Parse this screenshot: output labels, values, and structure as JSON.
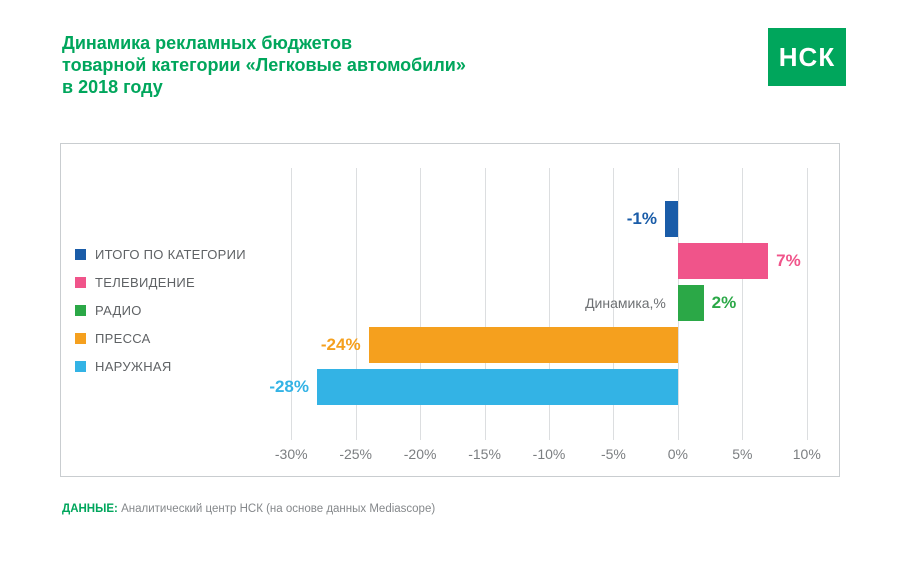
{
  "page": {
    "title_lines": [
      "Динамика рекламных бюджетов",
      "товарной категории «Легковые автомобили»",
      "в 2018 году"
    ],
    "logo_text": "НСК",
    "footer_label": "ДАННЫЕ:",
    "footer_text": " Аналитический центр НСК (на основе данных Mediascope)"
  },
  "colors": {
    "brand_green": "#00A65C",
    "border_gray": "#c9cdd0",
    "gridline_gray": "#dcdee0",
    "axis_text_gray": "#7b7e81"
  },
  "chart_data": {
    "type": "bar",
    "orientation": "horizontal",
    "title": "Динамика рекламных бюджетов товарной категории «Легковые автомобили» в 2018 году",
    "categories": [
      "ИТОГО ПО КАТЕГОРИИ",
      "ТЕЛЕВИДЕНИЕ",
      "РАДИО",
      "ПРЕССА",
      "НАРУЖНАЯ"
    ],
    "values": [
      -1,
      7,
      2,
      -24,
      -28
    ],
    "value_labels": [
      "-1%",
      "7%",
      "2%",
      "-24%",
      "-28%"
    ],
    "colors": [
      "#1A5CA8",
      "#F0548A",
      "#2BA847",
      "#F5A01E",
      "#33B3E5"
    ],
    "annotation": "Динамика,%",
    "annotation_row": 2,
    "x_ticks": [
      -30,
      -25,
      -20,
      -15,
      -10,
      -5,
      0,
      5,
      10
    ],
    "x_tick_labels": [
      "-30%",
      "-25%",
      "-20%",
      "-15%",
      "-10%",
      "-5%",
      "0%",
      "5%",
      "10%"
    ],
    "xlim": [
      -32.5,
      12.5
    ],
    "grid": true,
    "legend_position": "left",
    "xlabel": "",
    "ylabel": ""
  }
}
